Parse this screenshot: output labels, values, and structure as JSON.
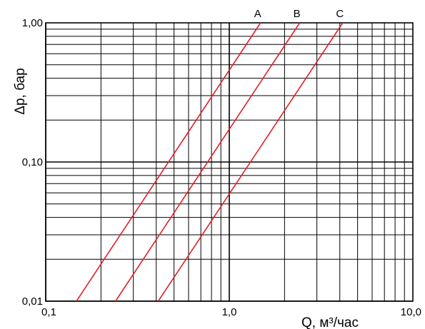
{
  "chart_data": {
    "type": "line",
    "x_scale": "log",
    "y_scale": "log",
    "xlim": [
      0.1,
      10.0
    ],
    "ylim": [
      0.01,
      1.0
    ],
    "xlabel": "Q, м³/час",
    "ylabel": "Δp, бар",
    "x_ticks": [
      {
        "value": 0.1,
        "label": "0,1"
      },
      {
        "value": 1.0,
        "label": "1,0"
      },
      {
        "value": 10.0,
        "label": "10,0"
      }
    ],
    "y_ticks": [
      {
        "value": 0.01,
        "label": "0,01"
      },
      {
        "value": 0.1,
        "label": "0,10"
      },
      {
        "value": 1.0,
        "label": "1,00"
      }
    ],
    "grid": true,
    "series": [
      {
        "name": "A",
        "color": "#e0202a",
        "points": [
          {
            "x": 0.147,
            "y": 0.01
          },
          {
            "x": 1.48,
            "y": 1.0
          }
        ]
      },
      {
        "name": "B",
        "color": "#e0202a",
        "points": [
          {
            "x": 0.24,
            "y": 0.01
          },
          {
            "x": 2.42,
            "y": 1.0
          }
        ]
      },
      {
        "name": "C",
        "color": "#e0202a",
        "points": [
          {
            "x": 0.41,
            "y": 0.01
          },
          {
            "x": 4.15,
            "y": 1.0
          }
        ]
      }
    ]
  }
}
